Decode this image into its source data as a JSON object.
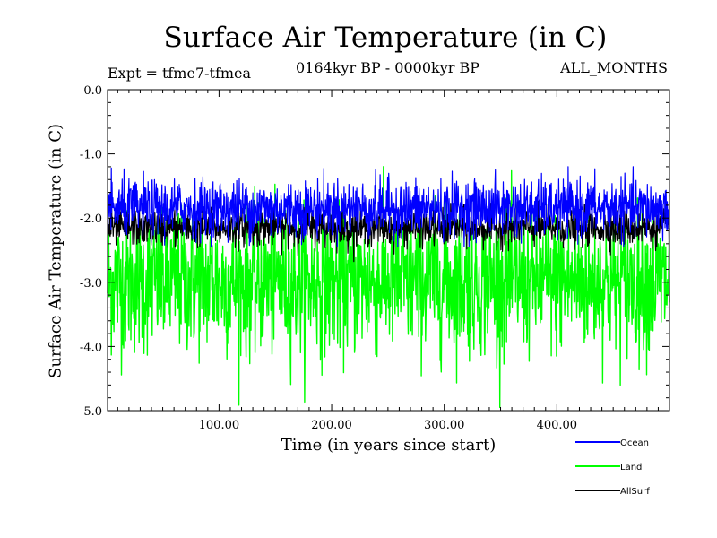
{
  "header": {
    "title": "Surface Air Temperature (in C)",
    "expt": "Expt = tfme7-tfmea",
    "period": "0164kyr BP - 0000kyr BP",
    "months": "ALL_MONTHS"
  },
  "colors": {
    "ocean": "#0000ff",
    "land": "#00ff00",
    "allsurf": "#000000"
  },
  "chart_data": {
    "type": "line",
    "title": "Surface Air Temperature (in C)",
    "xlabel": "Time (in years since start)",
    "ylabel": "Surface Air Temperature (in C)",
    "xlim": [
      1,
      500
    ],
    "ylim": [
      -5.0,
      0.0
    ],
    "x_ticks": [
      100,
      200,
      300,
      400
    ],
    "x_tick_labels": [
      "100.00",
      "200.00",
      "300.00",
      "400.00"
    ],
    "y_ticks": [
      0.0,
      -1.0,
      -2.0,
      -3.0,
      -4.0,
      -5.0
    ],
    "y_tick_labels": [
      "0.0",
      "-1.0",
      "-2.0",
      "-3.0",
      "-4.0",
      "-5.0"
    ],
    "legend_position": "bottom-right",
    "series": [
      {
        "name": "Ocean",
        "color": "#0000ff",
        "mean": -1.85,
        "range": [
          -2.45,
          -1.2
        ]
      },
      {
        "name": "Land",
        "color": "#00ff00",
        "mean": -3.0,
        "range": [
          -4.95,
          -0.6
        ]
      },
      {
        "name": "AllSurf",
        "color": "#000000",
        "mean": -2.15,
        "range": [
          -2.7,
          -1.6
        ]
      }
    ],
    "x_step": 1
  }
}
